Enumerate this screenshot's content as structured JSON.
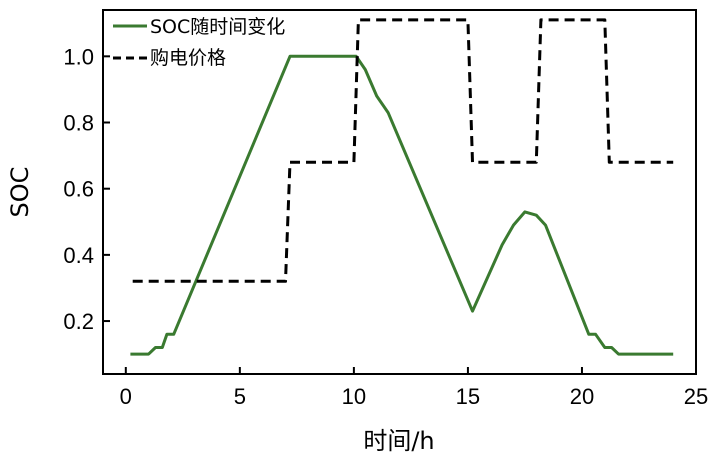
{
  "chart_data": {
    "type": "line",
    "title": "",
    "xlabel": "时间/h",
    "ylabel": "SOC",
    "xlim": [
      -1,
      25
    ],
    "ylim": [
      0.04,
      1.14
    ],
    "xticks": [
      0,
      5,
      10,
      15,
      20,
      25
    ],
    "xtick_labels": [
      "0",
      "5",
      "10",
      "15",
      "20",
      "25"
    ],
    "yticks": [
      0.2,
      0.4,
      0.6,
      0.8,
      1.0
    ],
    "ytick_labels": [
      "0.2",
      "0.4",
      "0.6",
      "0.8",
      "1.0"
    ],
    "grid": false,
    "legend": {
      "placement": "top-left"
    },
    "series": [
      {
        "name": "SOC随时间变化",
        "style": "solid",
        "color": "#3a7a30",
        "x": [
          0.2,
          1.0,
          1.3,
          1.6,
          1.8,
          2.1,
          7.2,
          10.1,
          10.5,
          11.0,
          11.5,
          15.2,
          16.5,
          17.0,
          17.5,
          18.0,
          18.4,
          20.3,
          20.6,
          21.0,
          21.3,
          21.6,
          24.0
        ],
        "y": [
          0.1,
          0.1,
          0.12,
          0.12,
          0.16,
          0.16,
          1.0,
          1.0,
          0.96,
          0.88,
          0.83,
          0.23,
          0.43,
          0.49,
          0.53,
          0.52,
          0.49,
          0.16,
          0.16,
          0.12,
          0.12,
          0.1,
          0.1
        ]
      },
      {
        "name": "购电价格",
        "style": "dashed",
        "color": "#000000",
        "x": [
          0.3,
          7.0,
          7.2,
          10.0,
          10.2,
          15.0,
          15.2,
          18.0,
          18.2,
          21.0,
          21.2,
          24.0
        ],
        "y": [
          0.32,
          0.32,
          0.68,
          0.68,
          1.11,
          1.11,
          0.68,
          0.68,
          1.11,
          1.11,
          0.68,
          0.68
        ]
      }
    ]
  },
  "colors": {
    "soc_line": "#3a7a30",
    "price_line": "#000000",
    "axis": "#000000",
    "background": "#ffffff"
  }
}
